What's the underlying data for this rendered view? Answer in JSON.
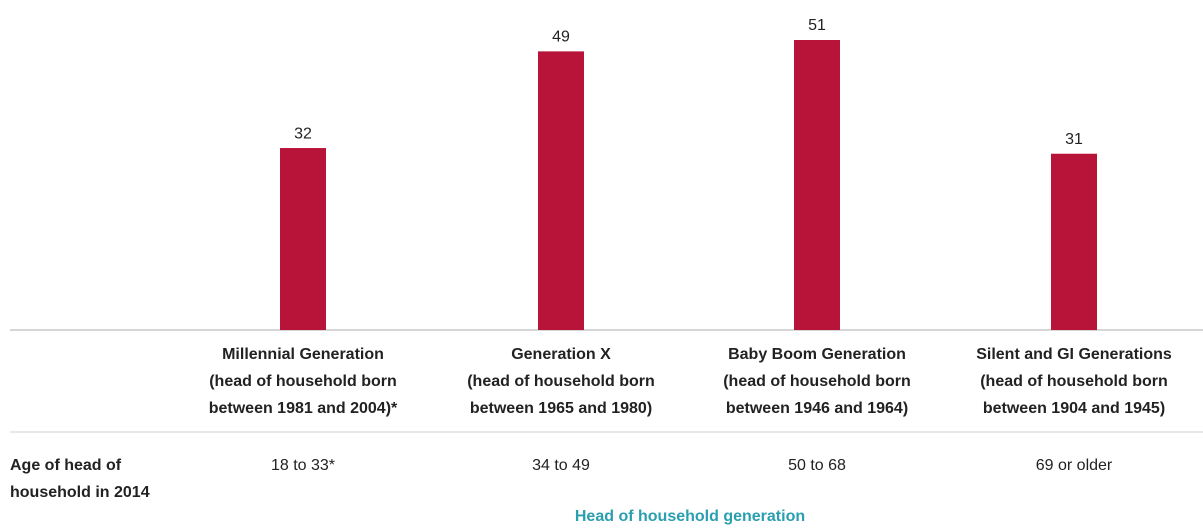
{
  "chart_data": {
    "type": "bar",
    "categories": [
      [
        "Millennial Generation",
        "(head of household born",
        "between 1981 and 2004)*"
      ],
      [
        "Generation X",
        "(head of household born",
        "between 1965 and 1980)"
      ],
      [
        "Baby Boom Generation",
        "(head of household born",
        "between 1946 and 1964)"
      ],
      [
        "Silent and GI Generations",
        "(head of household born",
        "between 1904 and 1945)"
      ]
    ],
    "values": [
      32,
      49,
      51,
      31
    ],
    "color": "#b8143a",
    "row_label": [
      "Age of head of",
      "household in 2014"
    ],
    "ages": [
      "18 to 33*",
      "34 to 49",
      "50 to 68",
      "69 or older"
    ],
    "xlabel": "Head of household generation",
    "xlabel_color": "#2a9fb0"
  }
}
